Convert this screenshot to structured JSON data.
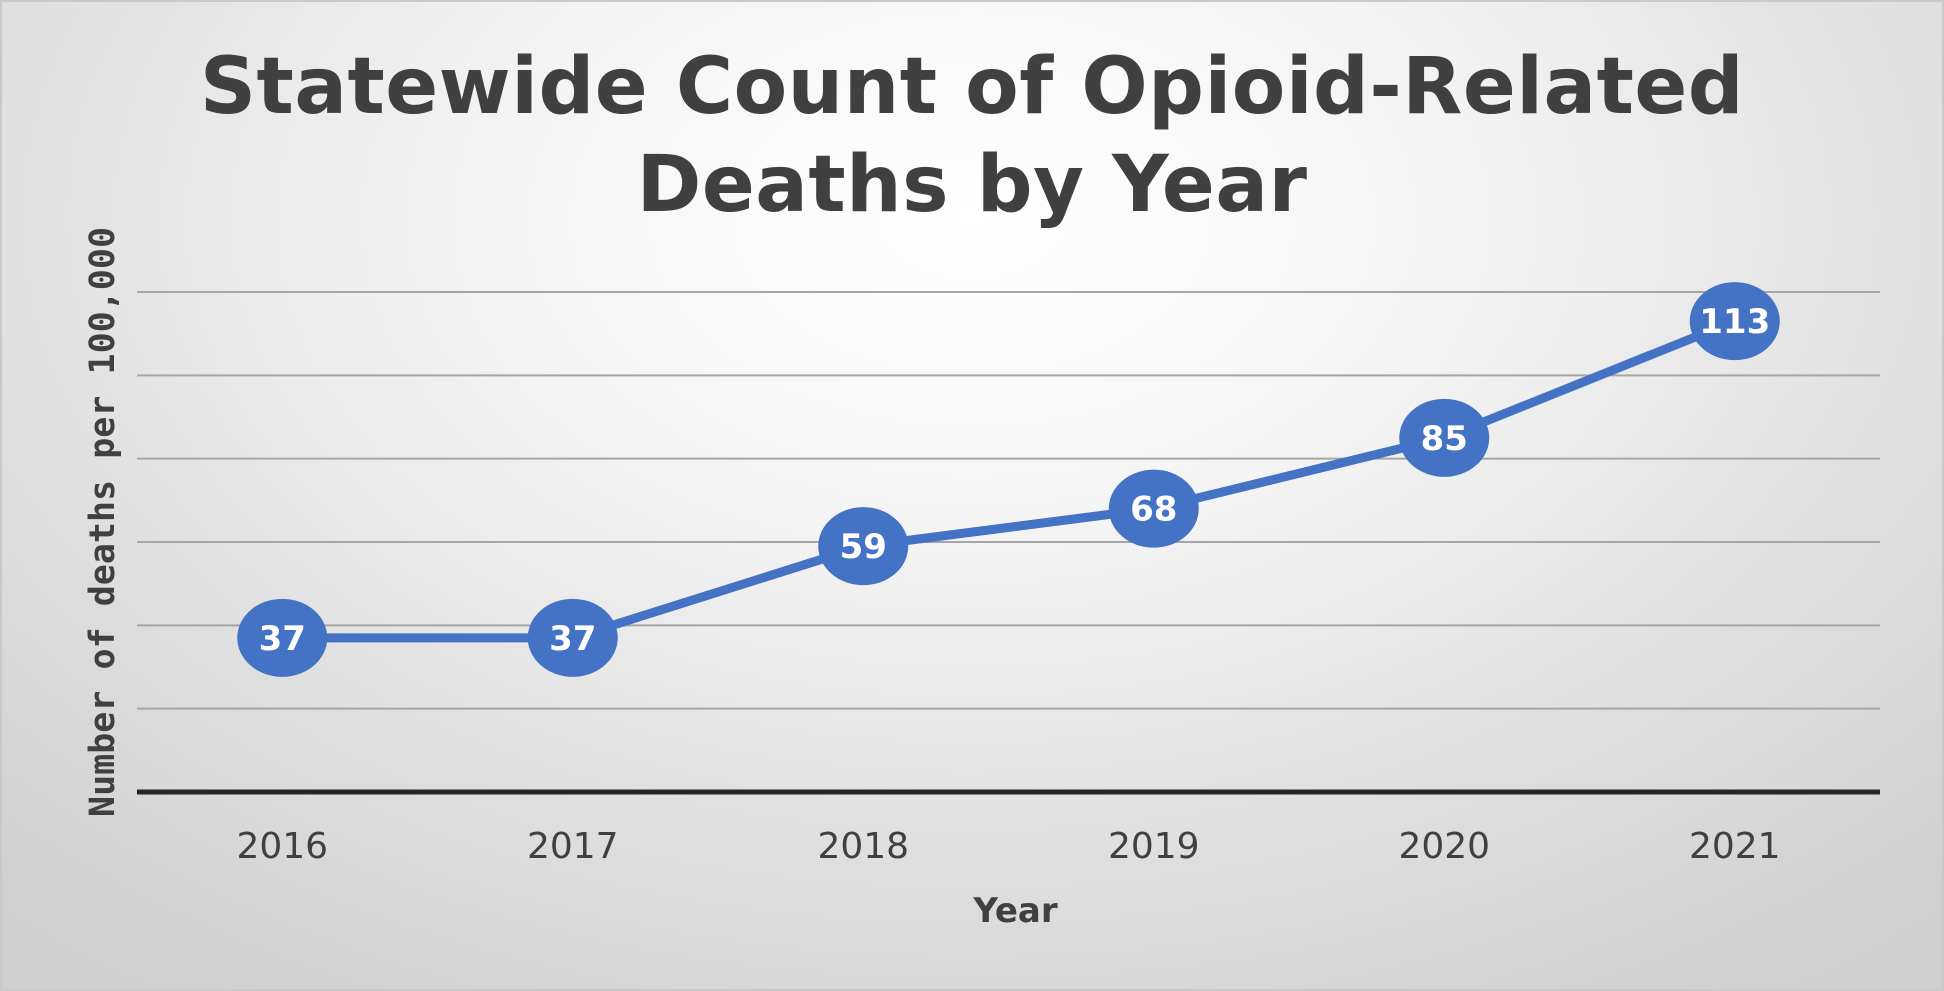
{
  "chart_data": {
    "type": "line",
    "title_lines": [
      "Statewide Count of Opioid-Related",
      "Deaths by Year"
    ],
    "xlabel": "Year",
    "ylabel": "Number of deaths per 100,000",
    "categories": [
      "2016",
      "2017",
      "2018",
      "2019",
      "2020",
      "2021"
    ],
    "series": [
      {
        "values": [
          37,
          37,
          59,
          68,
          85,
          113
        ],
        "color": "#4472c4"
      }
    ],
    "data_labels": true,
    "ylim": [
      0,
      120
    ],
    "y_gridlines": [
      20,
      40,
      60,
      80,
      100,
      120
    ],
    "grid": true,
    "legend": "none",
    "y_tick_labels_shown": false
  }
}
